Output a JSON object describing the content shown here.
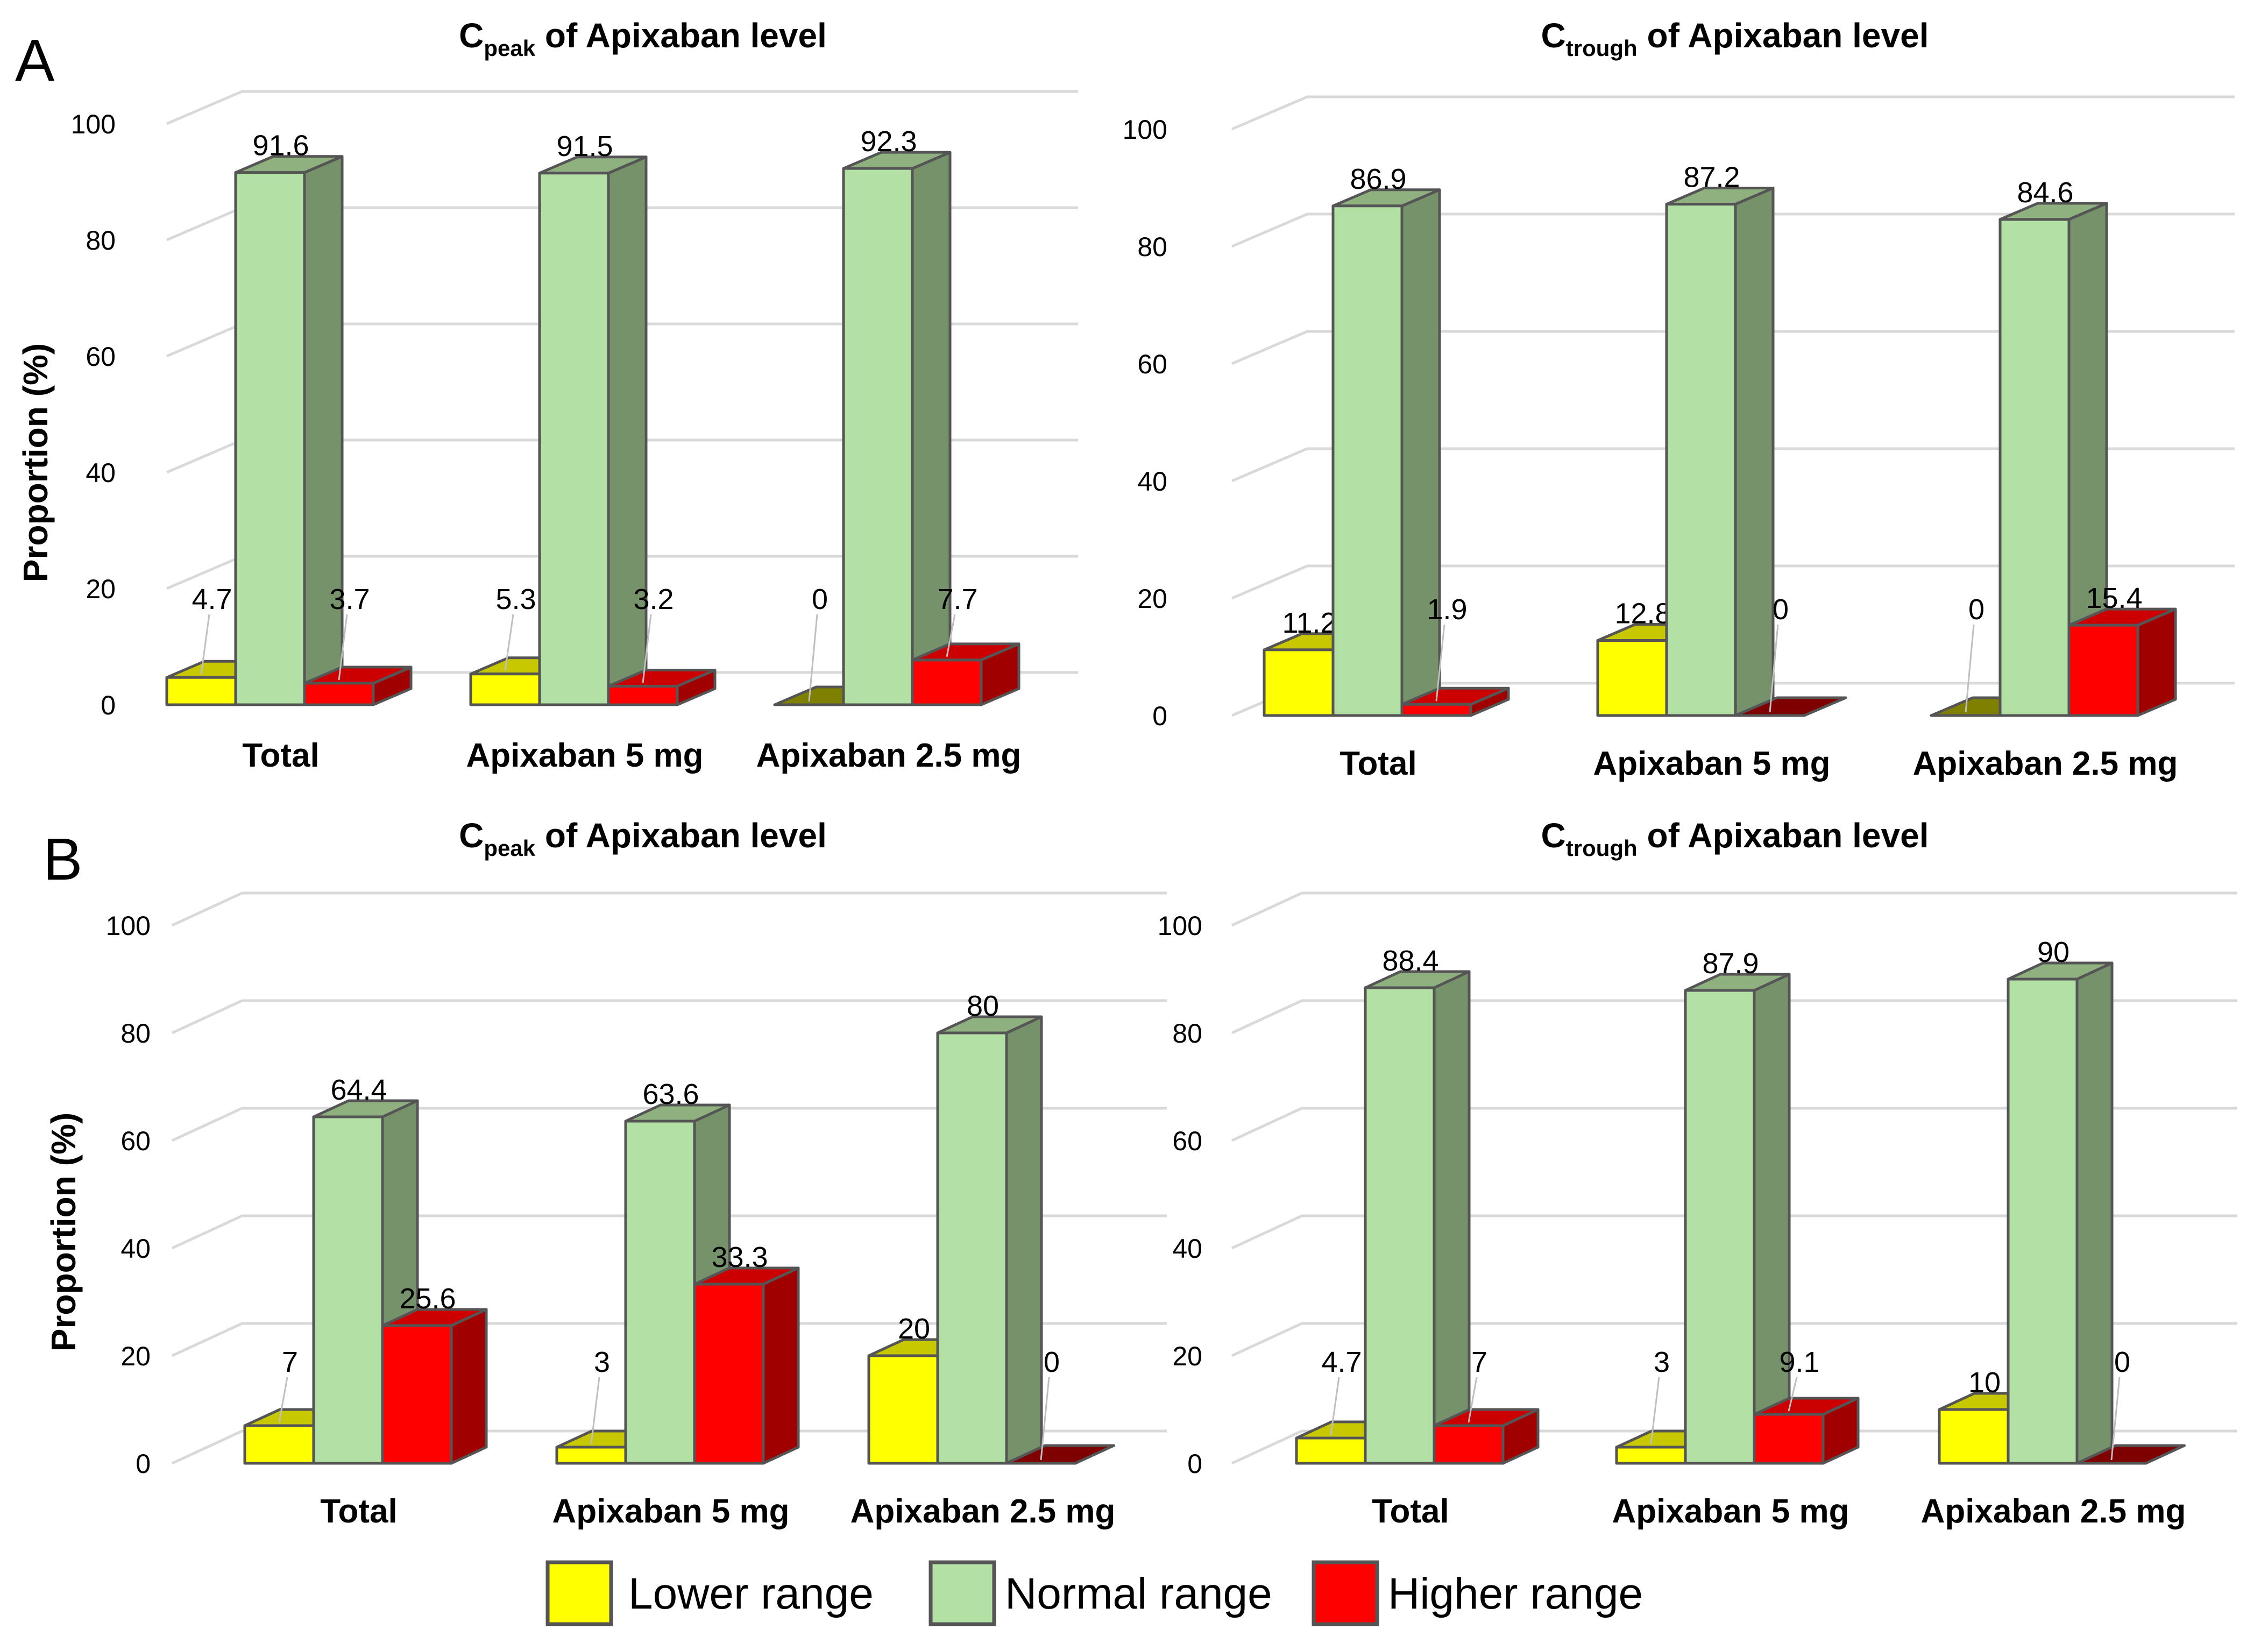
{
  "figure": {
    "panel_labels": [
      "A",
      "B"
    ],
    "ylabel": "Proportion (%)",
    "yticks": [
      "0",
      "20",
      "40",
      "60",
      "80",
      "100"
    ],
    "legend": [
      {
        "label": "Lower range",
        "color": "#ffff00"
      },
      {
        "label": "Normal range",
        "color": "#b3e0a4"
      },
      {
        "label": "Higher range",
        "color": "#ff0000"
      }
    ]
  },
  "chart_data": [
    {
      "type": "bar",
      "panel": "A",
      "title": {
        "main": "C",
        "sub": "peak",
        "rest": " of Apixaban level"
      },
      "categories": [
        "Total",
        "Apixaban 5 mg",
        "Apixaban 2.5 mg"
      ],
      "ylabel": "Proportion (%)",
      "ylim": [
        0,
        100
      ],
      "series": [
        {
          "name": "Lower range",
          "values": [
            4.7,
            5.3,
            0
          ]
        },
        {
          "name": "Normal range",
          "values": [
            91.6,
            91.5,
            92.3
          ]
        },
        {
          "name": "Higher range",
          "values": [
            3.7,
            3.2,
            7.7
          ]
        }
      ]
    },
    {
      "type": "bar",
      "panel": "A",
      "title": {
        "main": "C",
        "sub": "trough",
        "rest": " of Apixaban level"
      },
      "categories": [
        "Total",
        "Apixaban 5 mg",
        "Apixaban 2.5 mg"
      ],
      "ylim": [
        0,
        100
      ],
      "series": [
        {
          "name": "Lower range",
          "values": [
            11.2,
            12.8,
            0
          ]
        },
        {
          "name": "Normal range",
          "values": [
            86.9,
            87.2,
            84.6
          ]
        },
        {
          "name": "Higher range",
          "values": [
            1.9,
            0,
            15.4
          ]
        }
      ]
    },
    {
      "type": "bar",
      "panel": "B",
      "title": {
        "main": "C",
        "sub": "peak",
        "rest": " of Apixaban level"
      },
      "categories": [
        "Total",
        "Apixaban 5 mg",
        "Apixaban 2.5 mg"
      ],
      "ylabel": "Proportion (%)",
      "ylim": [
        0,
        100
      ],
      "series": [
        {
          "name": "Lower range",
          "values": [
            7,
            3,
            20
          ]
        },
        {
          "name": "Normal range",
          "values": [
            64.4,
            63.6,
            80
          ]
        },
        {
          "name": "Higher range",
          "values": [
            25.6,
            33.3,
            0
          ]
        }
      ]
    },
    {
      "type": "bar",
      "panel": "B",
      "title": {
        "main": "C",
        "sub": "trough",
        "rest": " of Apixaban level"
      },
      "categories": [
        "Total",
        "Apixaban 5 mg",
        "Apixaban 2.5 mg"
      ],
      "ylim": [
        0,
        100
      ],
      "series": [
        {
          "name": "Lower range",
          "values": [
            4.7,
            3,
            10
          ]
        },
        {
          "name": "Normal range",
          "values": [
            88.4,
            87.9,
            90
          ]
        },
        {
          "name": "Higher range",
          "values": [
            7,
            9.1,
            0
          ]
        }
      ]
    }
  ]
}
